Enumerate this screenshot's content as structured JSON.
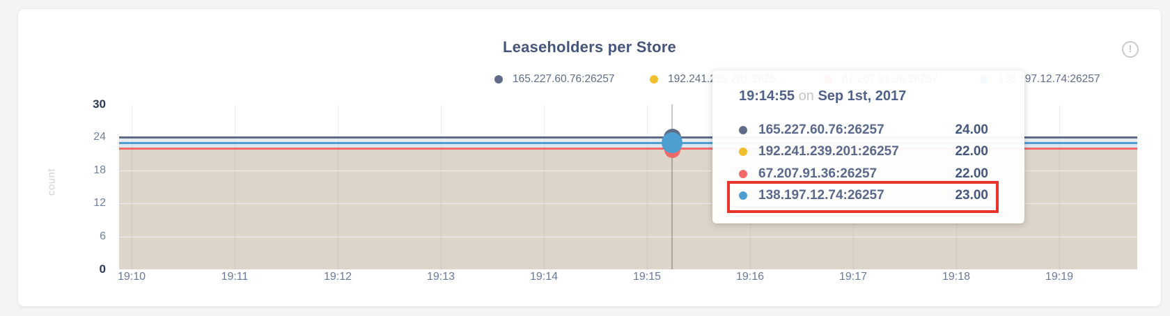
{
  "card": {
    "title": "Leaseholders per Store",
    "info_icon": "!"
  },
  "legend": {
    "items": [
      {
        "label": "165.227.60.76:26257",
        "color": "#5F6C87"
      },
      {
        "label": "192.241.239.201:2625…",
        "color": "#F2BE2C"
      },
      {
        "label": "67.207.91.36:26257",
        "color": "#F16969"
      },
      {
        "label": "138.197.12.74:26257",
        "color": "#4E9FD1"
      }
    ]
  },
  "y_axis": {
    "label": "count",
    "ticks": [
      "30",
      "24",
      "18",
      "12",
      "6",
      "0"
    ]
  },
  "x_axis": {
    "ticks": [
      "19:10",
      "19:11",
      "19:12",
      "19:13",
      "19:14",
      "19:15",
      "19:16",
      "19:17",
      "19:18",
      "19:19"
    ]
  },
  "tooltip": {
    "time": "19:14:55",
    "on_word": "on",
    "date": "Sep 1st, 2017",
    "rows": [
      {
        "label": "165.227.60.76:26257",
        "value": "24.00",
        "color": "#5F6C87",
        "highlighted": false
      },
      {
        "label": "192.241.239.201:26257",
        "value": "22.00",
        "color": "#F2BE2C",
        "highlighted": false
      },
      {
        "label": "67.207.91.36:26257",
        "value": "22.00",
        "color": "#F16969",
        "highlighted": false
      },
      {
        "label": "138.197.12.74:26257",
        "value": "23.00",
        "color": "#4E9FD1",
        "highlighted": true
      }
    ],
    "highlight_color": "#e8352b"
  },
  "chart_data": {
    "type": "area",
    "title": "Leaseholders per Store",
    "xlabel": "",
    "ylabel": "count",
    "ylim": [
      0,
      30
    ],
    "y_ticks": [
      0,
      6,
      12,
      18,
      24,
      30
    ],
    "x": [
      "19:10",
      "19:11",
      "19:12",
      "19:13",
      "19:14",
      "19:15",
      "19:16",
      "19:17",
      "19:18",
      "19:19"
    ],
    "series": [
      {
        "name": "165.227.60.76:26257",
        "color": "#5F6C87",
        "constant_value": 24,
        "values": [
          24,
          24,
          24,
          24,
          24,
          24,
          24,
          24,
          24,
          24
        ]
      },
      {
        "name": "192.241.239.201:26257",
        "color": "#F2BE2C",
        "constant_value": 22,
        "values": [
          22,
          22,
          22,
          22,
          22,
          22,
          22,
          22,
          22,
          22
        ]
      },
      {
        "name": "67.207.91.36:26257",
        "color": "#F16969",
        "constant_value": 22,
        "values": [
          22,
          22,
          22,
          22,
          22,
          22,
          22,
          22,
          22,
          22
        ]
      },
      {
        "name": "138.197.12.74:26257",
        "color": "#4E9FD1",
        "constant_value": 23,
        "values": [
          23,
          23,
          23,
          23,
          23,
          23,
          23,
          23,
          23,
          23
        ]
      }
    ],
    "hover": {
      "time": "19:14:55",
      "date": "Sep 1st, 2017",
      "values": {
        "165.227.60.76:26257": 24,
        "192.241.239.201:26257": 22,
        "67.207.91.36:26257": 22,
        "138.197.12.74:26257": 23
      }
    },
    "legend_position": "top",
    "grid": true,
    "area_fill": true,
    "band_colors": {
      "between_24_23": "#e8ecf1",
      "between_23_22": "#dbe7f2",
      "below_22": "#ded5ca"
    }
  }
}
